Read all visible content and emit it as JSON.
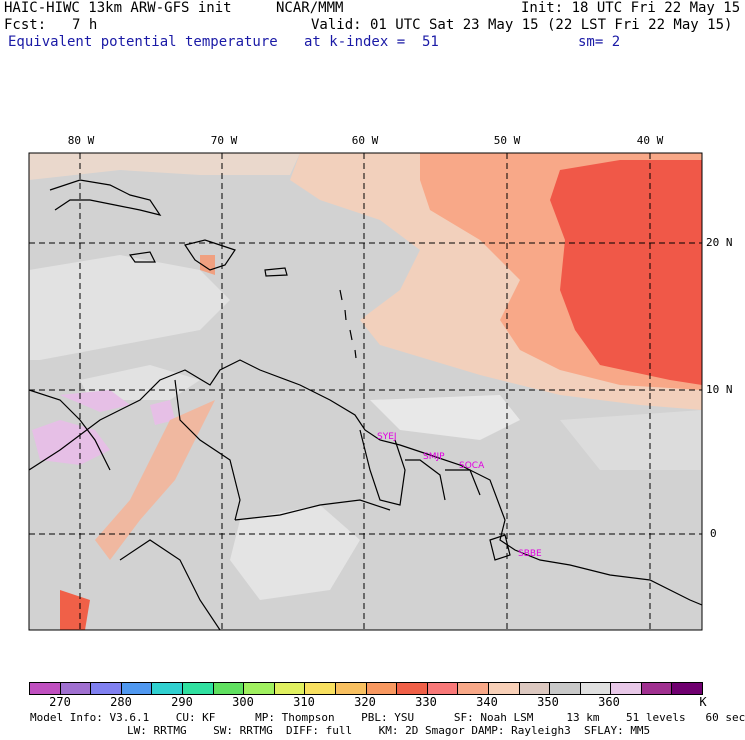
{
  "header": {
    "model": "HAIC-HIWC 13km ARW-GFS init",
    "org": "NCAR/MMM",
    "init": "Init: 18 UTC Fri 22 May 15",
    "fcst_label": "Fcst:",
    "fcst_value": "7 h",
    "valid": "Valid: 01 UTC Sat 23 May 15 (22 LST Fri 22 May 15)",
    "field": "Equivalent potential temperature",
    "level": "at k-index =  51",
    "smooth": "sm= 2"
  },
  "map": {
    "lon_labels": [
      "80 W",
      "70 W",
      "60 W",
      "50 W",
      "40 W"
    ],
    "lat_labels": [
      "20 N",
      "10 N",
      "0"
    ],
    "sites": [
      "SYEJ",
      "SMJP",
      "SOCA",
      "SBBE"
    ],
    "colors": {
      "ocean_bg": "#d2d2d2",
      "land_bg": "#c8c8c8",
      "warm1": "#f8d0b8",
      "warm2": "#f8a888",
      "hot": "#f05848",
      "cool": "#e6bfe6",
      "site_label": "#e000e0"
    }
  },
  "colorbar": {
    "labels": [
      "270",
      "280",
      "290",
      "300",
      "310",
      "320",
      "330",
      "340",
      "350",
      "360",
      "K"
    ],
    "colors": [
      "#c050c0",
      "#a070d0",
      "#8080f0",
      "#5098f0",
      "#30d0d0",
      "#30e0a0",
      "#60e060",
      "#a0f060",
      "#e0f060",
      "#f8e060",
      "#f8c060",
      "#f89860",
      "#f06048",
      "#f87878",
      "#f8a888",
      "#f8d0b8",
      "#dcc8c0",
      "#c8c8c8",
      "#e0e0e0",
      "#e8c8e8",
      "#a03090",
      "#700070"
    ]
  },
  "footer": {
    "line1": "Model Info: V3.6.1    CU: KF      MP: Thompson    PBL: YSU      SF: Noah LSM     13 km    51 levels   60 sec",
    "line2": "LW: RRTMG    SW: RRTMG  DIFF: full    KM: 2D Smagor DAMP: Rayleigh3  SFLAY: MM5"
  }
}
